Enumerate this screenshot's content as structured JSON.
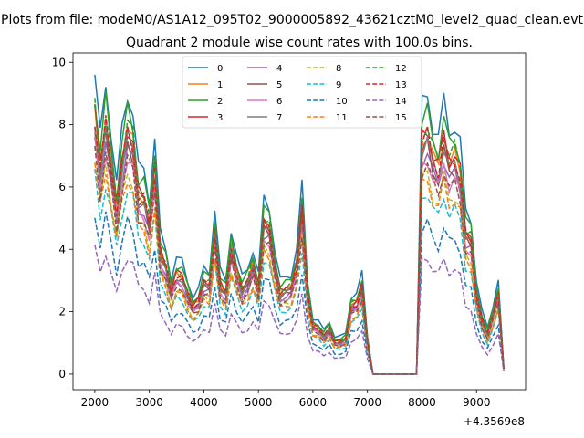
{
  "chart_data": {
    "type": "line",
    "suptitle": "Plots from file: modeM0/AS1A12_095T02_9000005892_43621cztM0_level2_quad_clean.evt",
    "title": "Quadrant 2 module wise count rates with 100.0s bins.",
    "xlabel": "",
    "ylabel": "",
    "offset_text": "+4.3569e8",
    "xlim": [
      1600,
      9900
    ],
    "ylim": [
      -0.5,
      10.3
    ],
    "xticks": [
      "2000",
      "3000",
      "4000",
      "5000",
      "6000",
      "7000",
      "8000",
      "9000"
    ],
    "yticks": [
      "0",
      "2",
      "4",
      "6",
      "8",
      "10"
    ],
    "grid": false,
    "legend": {
      "placement": "top-center",
      "columns": 4
    },
    "x": [
      2000,
      2100,
      2200,
      2300,
      2400,
      2500,
      2600,
      2700,
      2800,
      2900,
      3000,
      3100,
      3200,
      3300,
      3400,
      3500,
      3600,
      3700,
      3800,
      3900,
      4000,
      4100,
      4200,
      4300,
      4400,
      4500,
      4600,
      4700,
      4800,
      4900,
      5000,
      5100,
      5200,
      5300,
      5400,
      5500,
      5600,
      5700,
      5800,
      5900,
      6000,
      6100,
      6200,
      6300,
      6400,
      6500,
      6600,
      6700,
      6800,
      6900,
      7000,
      7100,
      7200,
      7300,
      7400,
      7500,
      7600,
      7700,
      7800,
      7900,
      8000,
      8100,
      8200,
      8300,
      8400,
      8500,
      8600,
      8700,
      8800,
      8900,
      9000,
      9100,
      9200,
      9300,
      9400,
      9500
    ],
    "base": [
      9.6,
      7.6,
      9.3,
      7.8,
      6.1,
      7.8,
      9.0,
      8.5,
      6.6,
      6.5,
      5.6,
      7.6,
      4.5,
      4.0,
      3.1,
      3.7,
      3.6,
      3.0,
      2.5,
      2.7,
      3.4,
      3.3,
      5.3,
      3.3,
      3.0,
      4.7,
      3.8,
      3.1,
      3.4,
      4.0,
      3.2,
      5.6,
      5.4,
      4.0,
      3.0,
      3.1,
      3.2,
      4.0,
      6.0,
      3.0,
      1.8,
      1.7,
      1.4,
      1.7,
      1.2,
      1.2,
      1.3,
      2.5,
      2.6,
      3.2,
      1.2,
      0.0,
      0.0,
      0.0,
      0.0,
      0.0,
      0.0,
      0.0,
      0.0,
      0.0,
      8.6,
      8.9,
      8.0,
      7.6,
      8.7,
      7.8,
      8.0,
      7.4,
      5.2,
      5.0,
      3.0,
      2.0,
      1.5,
      2.2,
      3.0,
      0.2
    ],
    "series": [
      {
        "name": "0",
        "color": "#1f77b4",
        "dash": false,
        "factor": 1.0
      },
      {
        "name": "1",
        "color": "#ff7f0e",
        "dash": false,
        "factor": 0.87
      },
      {
        "name": "2",
        "color": "#2ca02c",
        "dash": false,
        "factor": 0.94
      },
      {
        "name": "3",
        "color": "#d62728",
        "dash": false,
        "factor": 0.88
      },
      {
        "name": "4",
        "color": "#9467bd",
        "dash": false,
        "factor": 0.8
      },
      {
        "name": "5",
        "color": "#8c564b",
        "dash": false,
        "factor": 0.82
      },
      {
        "name": "6",
        "color": "#e377c2",
        "dash": false,
        "factor": 0.78
      },
      {
        "name": "7",
        "color": "#7f7f7f",
        "dash": false,
        "factor": 0.84
      },
      {
        "name": "8",
        "color": "#bcbd22",
        "dash": true,
        "factor": 0.72
      },
      {
        "name": "9",
        "color": "#17becf",
        "dash": true,
        "factor": 0.66
      },
      {
        "name": "10",
        "color": "#1f77b4",
        "dash": true,
        "factor": 0.54
      },
      {
        "name": "11",
        "color": "#ff7f0e",
        "dash": true,
        "factor": 0.7
      },
      {
        "name": "12",
        "color": "#2ca02c",
        "dash": true,
        "factor": 0.9
      },
      {
        "name": "13",
        "color": "#d62728",
        "dash": true,
        "factor": 0.86
      },
      {
        "name": "14",
        "color": "#9467bd",
        "dash": true,
        "factor": 0.42
      },
      {
        "name": "15",
        "color": "#8c564b",
        "dash": true,
        "factor": 0.76
      }
    ]
  }
}
